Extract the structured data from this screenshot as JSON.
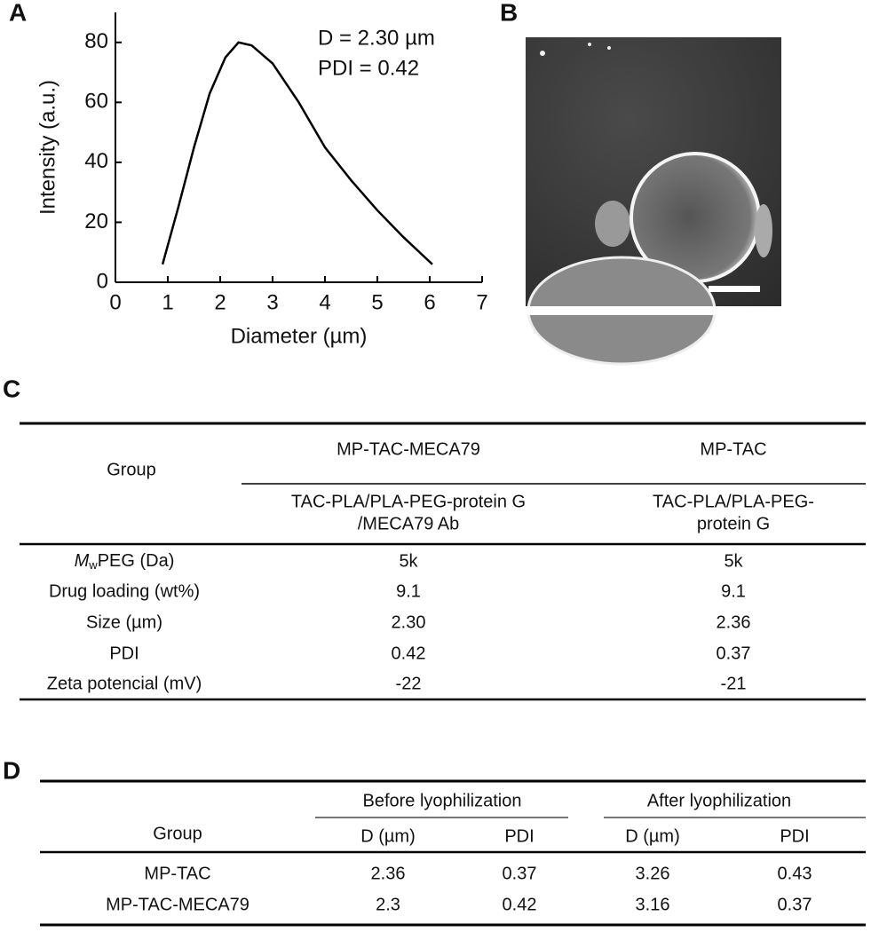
{
  "panels": {
    "a": "A",
    "b": "B",
    "c": "C",
    "d": "D"
  },
  "chart_data": {
    "type": "line",
    "color": "#000000",
    "x": [
      0.9,
      1.2,
      1.5,
      1.8,
      2.1,
      2.35,
      2.6,
      3.0,
      3.5,
      4.0,
      4.5,
      5.0,
      5.5,
      6.05
    ],
    "values": [
      6,
      25,
      45,
      63,
      75,
      80,
      79,
      73,
      60,
      45,
      34,
      24,
      15,
      6
    ],
    "xlim": [
      0,
      7
    ],
    "xticks": [
      0,
      1,
      2,
      3,
      4,
      5,
      6,
      7
    ],
    "ylim": [
      0,
      90
    ],
    "yticks": [
      0,
      20,
      40,
      60,
      80
    ],
    "x_label": "Diameter (µm)",
    "y_label": "Intensity (a.u.)",
    "annotations": [
      "D = 2.30 µm",
      "PDI = 0.42"
    ]
  },
  "table_c": {
    "group": "Group",
    "columns": [
      "MP-TAC-MECA79",
      "MP-TAC"
    ],
    "descriptions": [
      [
        "TAC-PLA/PLA-PEG-protein G",
        "/MECA79 Ab"
      ],
      [
        "TAC-PLA/PLA-PEG-",
        "protein G"
      ]
    ],
    "mw_label": {
      "italic": "M",
      "sub": "w",
      "rest": "PEG (Da)"
    },
    "rows": [
      [
        "5k",
        "5k"
      ],
      [
        "Drug loading (wt%)",
        "9.1",
        "9.1"
      ],
      [
        "Size (µm)",
        "2.30",
        "2.36"
      ],
      [
        "PDI",
        "0.42",
        "0.37"
      ],
      [
        "Zeta potencial (mV)",
        "-22",
        "-21"
      ]
    ]
  },
  "table_d": {
    "group": "Group",
    "headers": [
      "Before lyophilization",
      "After lyophilization"
    ],
    "subheaders": [
      "D (µm)",
      "PDI",
      "D (µm)",
      "PDI"
    ],
    "rows": [
      [
        "MP-TAC",
        "2.36",
        "0.37",
        "3.26",
        "0.43"
      ],
      [
        "MP-TAC-MECA79",
        "2.3",
        "0.42",
        "3.16",
        "0.37"
      ]
    ]
  }
}
